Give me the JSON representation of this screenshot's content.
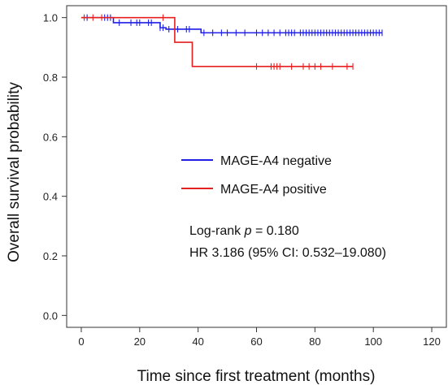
{
  "chart_data": {
    "type": "line",
    "subtype": "kaplan-meier",
    "title": "",
    "xlabel": "Time since first treatment (months)",
    "ylabel": "Overall survival probability",
    "xlim": [
      -5,
      125
    ],
    "ylim": [
      -0.04,
      1.04
    ],
    "xticks": [
      0,
      20,
      40,
      60,
      80,
      100,
      120
    ],
    "yticks": [
      0.0,
      0.2,
      0.4,
      0.6,
      0.8,
      1.0
    ],
    "xtick_labels": [
      "0",
      "20",
      "40",
      "60",
      "80",
      "100",
      "120"
    ],
    "ytick_labels": [
      "0.0",
      "0.2",
      "0.4",
      "0.6",
      "0.8",
      "1.0"
    ],
    "grid": false,
    "legend_position": "center",
    "series": [
      {
        "name": "MAGE-A4 negative",
        "color": "#1f1fe6",
        "steps": [
          [
            0,
            1.0
          ],
          [
            11,
            0.983
          ],
          [
            27,
            0.966
          ],
          [
            29,
            0.961
          ],
          [
            41,
            0.949
          ]
        ],
        "end_x": 103,
        "censor_x": [
          2,
          8,
          9,
          10,
          13,
          17,
          19,
          20,
          23,
          24,
          27,
          28,
          30,
          33,
          36,
          37,
          42,
          45,
          48,
          50,
          53,
          56,
          60,
          62,
          64,
          66,
          68,
          70,
          71,
          72,
          73,
          75,
          76,
          77,
          78,
          79,
          80,
          81,
          82,
          83,
          84,
          85,
          86,
          87,
          88,
          89,
          90,
          91,
          92,
          93,
          94,
          95,
          96,
          97,
          98,
          99,
          100,
          101,
          102,
          103
        ]
      },
      {
        "name": "MAGE-A4 positive",
        "color": "#e61f1f",
        "steps": [
          [
            0,
            1.0
          ],
          [
            32,
            0.917
          ],
          [
            38,
            0.836
          ]
        ],
        "end_x": 93,
        "censor_x": [
          1,
          4,
          7,
          28,
          60,
          65,
          66,
          67,
          68,
          72,
          76,
          78,
          80,
          82,
          86,
          91,
          93
        ]
      }
    ],
    "annotations": {
      "logrank_prefix": "Log-rank ",
      "logrank_p": "p",
      "logrank_value": " = 0.180",
      "hr": "HR 3.186 (95% CI: 0.532–19.080)"
    }
  }
}
